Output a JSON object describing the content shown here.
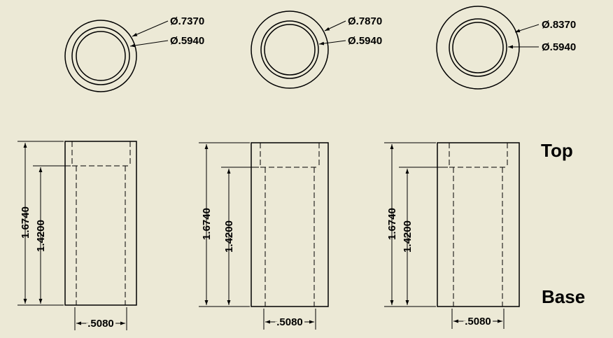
{
  "labels": {
    "top": "Top",
    "base": "Base"
  },
  "parts": [
    {
      "outer_diameter": "Ø.7370",
      "inner_diameter": "Ø.5940",
      "overall_height": "1.6740",
      "bore_depth": "1.4200",
      "base_width": ".5080"
    },
    {
      "outer_diameter": "Ø.7870",
      "inner_diameter": "Ø.5940",
      "overall_height": "1.6740",
      "bore_depth": "1.4200",
      "base_width": ".5080"
    },
    {
      "outer_diameter": "Ø.8370",
      "inner_diameter": "Ø.5940",
      "overall_height": "1.6740",
      "bore_depth": "1.4200",
      "base_width": ".5080"
    }
  ]
}
